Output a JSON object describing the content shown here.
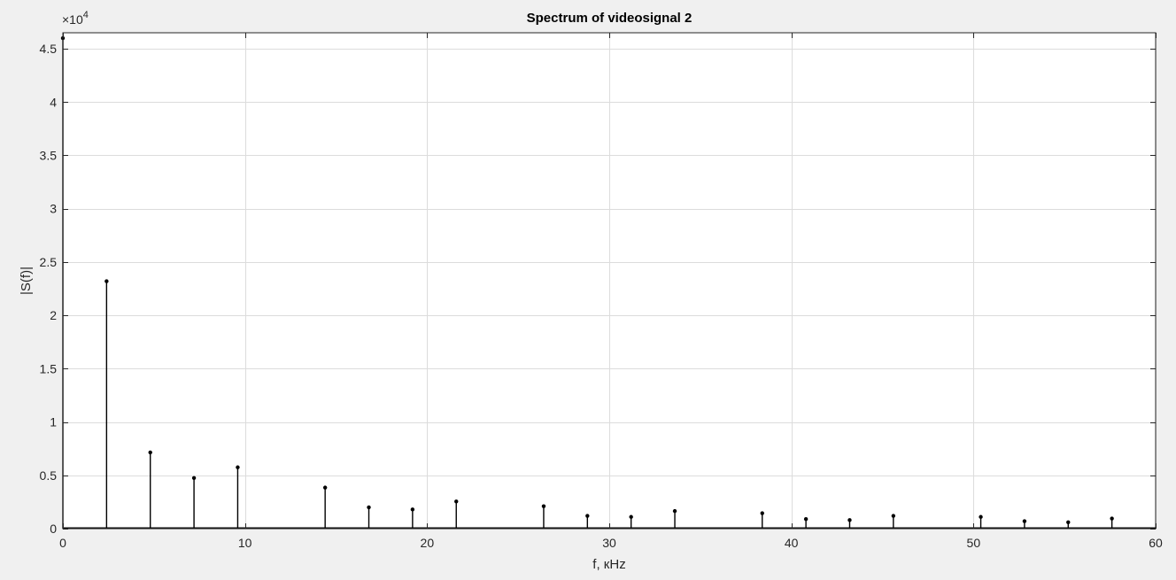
{
  "chart_data": {
    "type": "stem",
    "title": "Spectrum of videosignal 2",
    "xlabel": "f, кHz",
    "ylabel": "|S(f)|",
    "y_multiplier_base": "×10",
    "y_multiplier_exp": "4",
    "xlim": [
      0,
      60
    ],
    "ylim": [
      0,
      46500
    ],
    "x_ticks": [
      0,
      10,
      20,
      30,
      40,
      50,
      60
    ],
    "y_ticks": [
      0,
      5000,
      10000,
      15000,
      20000,
      25000,
      30000,
      35000,
      40000,
      45000
    ],
    "x_tick_labels": [
      "0",
      "10",
      "20",
      "30",
      "40",
      "50",
      "60"
    ],
    "y_tick_labels": [
      "0",
      "0.5",
      "1",
      "1.5",
      "2",
      "2.5",
      "3",
      "3.5",
      "4",
      "4.5"
    ],
    "grid": true,
    "x": [
      0,
      2.4,
      4.8,
      7.2,
      9.6,
      14.4,
      16.8,
      19.2,
      21.6,
      26.4,
      28.8,
      31.2,
      33.6,
      38.4,
      40.8,
      43.2,
      45.6,
      50.4,
      52.8,
      55.2,
      57.6
    ],
    "y": [
      46000,
      23200,
      7150,
      4750,
      5750,
      3850,
      2000,
      1800,
      2550,
      2100,
      1200,
      1100,
      1650,
      1450,
      900,
      800,
      1200,
      1100,
      700,
      600,
      950
    ],
    "marker_color": "#000000",
    "stem_color": "#000000"
  }
}
